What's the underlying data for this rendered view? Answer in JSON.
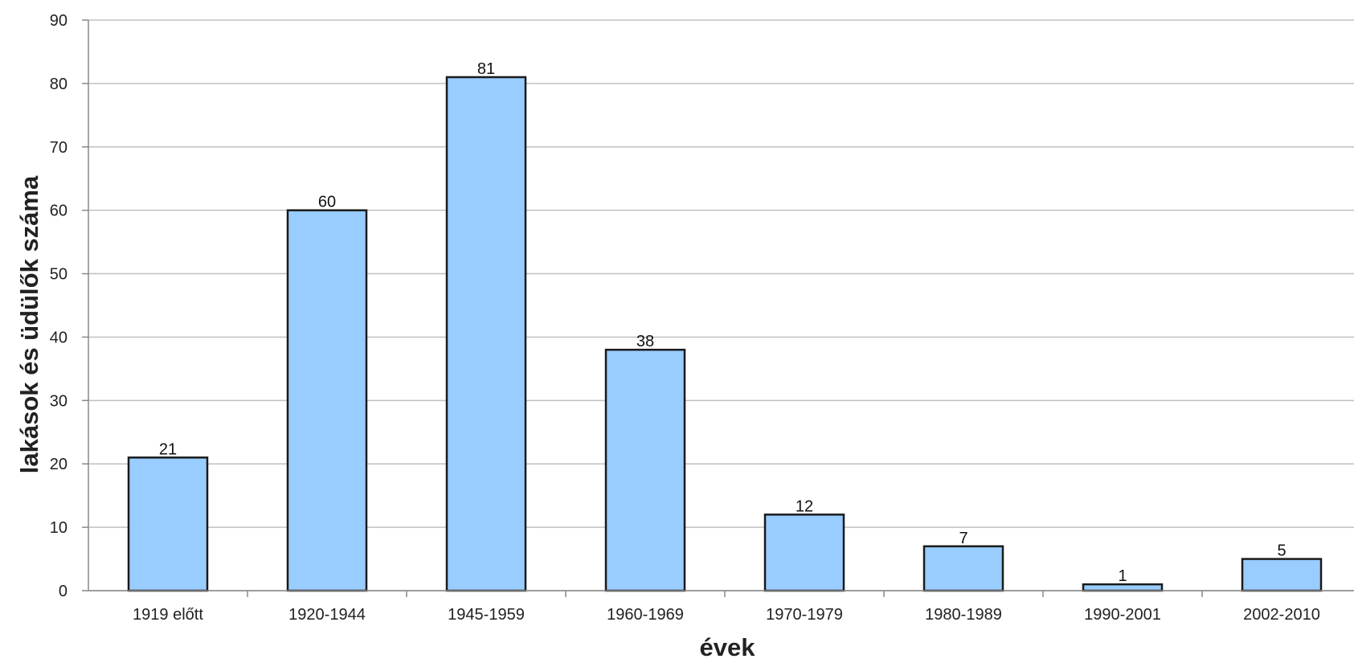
{
  "chart_data": {
    "type": "bar",
    "title": "",
    "xlabel": "évek",
    "ylabel": "lakások és üdülők száma",
    "categories": [
      "1919 előtt",
      "1920-1944",
      "1945-1959",
      "1960-1969",
      "1970-1979",
      "1980-1989",
      "1990-2001",
      "2002-2010"
    ],
    "values": [
      21,
      60,
      81,
      38,
      12,
      7,
      1,
      5
    ],
    "data_labels": [
      "21",
      "60",
      "81",
      "38",
      "12",
      "7",
      "1",
      "5"
    ],
    "ylim": [
      0,
      90
    ],
    "yticks": [
      0,
      10,
      20,
      30,
      40,
      50,
      60,
      70,
      80,
      90
    ],
    "ytick_labels": [
      "0",
      "10",
      "20",
      "30",
      "40",
      "50",
      "60",
      "70",
      "80",
      "90"
    ],
    "grid": true,
    "legend": "none",
    "bar_color": "#99ccff",
    "bar_edge_color": "#1a1a1a",
    "grid_color": "#c0c0c0"
  }
}
